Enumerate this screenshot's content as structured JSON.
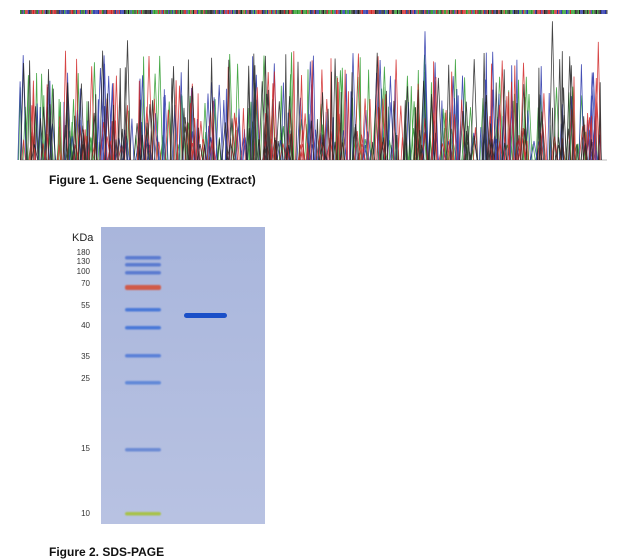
{
  "figure1": {
    "caption": "Figure 1. Gene Sequencing (Extract)"
  },
  "figure2": {
    "caption": "Figure 2. SDS-PAGE",
    "unit_label": "KDa",
    "marker_labels": [
      "180",
      "130",
      "100",
      "70",
      "55",
      "40",
      "35",
      "25",
      "15",
      "10"
    ]
  }
}
